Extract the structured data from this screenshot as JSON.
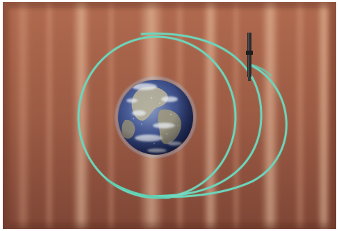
{
  "scene": {
    "subject": "earth-orbit-render",
    "colors": {
      "background_base": "#9c5b44",
      "background_dark": "#6e3a2b",
      "streak_light": "#f2c6a3",
      "orbit": "#5fd0b4",
      "earth_ocean": "#2f3f7a",
      "earth_land": "#b8b39a",
      "earth_cloud": "#e6e9ee",
      "satellite": "#2b2b2b"
    },
    "elements": {
      "planet_icon": "globe-icon",
      "satellite_icon": "satellite-icon",
      "orbit_count": 3
    }
  }
}
